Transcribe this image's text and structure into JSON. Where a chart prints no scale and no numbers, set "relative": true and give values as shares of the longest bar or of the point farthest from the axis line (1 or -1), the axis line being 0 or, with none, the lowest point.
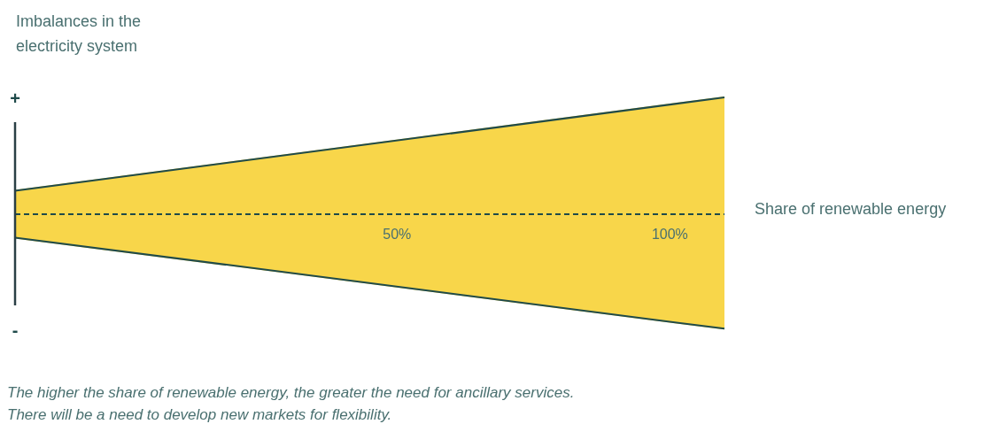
{
  "chart_data": {
    "type": "area",
    "relative": true,
    "ylabel": "Imbalances in the electricity system",
    "xlabel": "Share of renewable energy",
    "x": [
      -20,
      110
    ],
    "xlim": [
      -20,
      110
    ],
    "xticks": [
      {
        "value": 50,
        "label": "50%"
      },
      {
        "value": 100,
        "label": "100%"
      }
    ],
    "series": [
      {
        "color": "#f8d64a",
        "values": [
          0.2,
          1
        ]
      },
      {
        "color": "#f8d64a",
        "values": [
          -0.2,
          -0.98
        ]
      },
      {
        "type": "line",
        "color": "#1f4a4a",
        "values": [
          0.2,
          1
        ]
      },
      {
        "type": "line",
        "color": "#1f4a4a",
        "values": [
          -0.2,
          -0.98
        ]
      }
    ],
    "ref_lines": [
      {
        "axis": "y",
        "value": 0,
        "color": "#1f4a4a",
        "line_style": "dashed"
      }
    ],
    "annotations": [
      "+",
      "-",
      "The higher the share of renewable energy, the greater the need for ancillary services.",
      "There will be a need to develop new markets for flexibility."
    ]
  }
}
